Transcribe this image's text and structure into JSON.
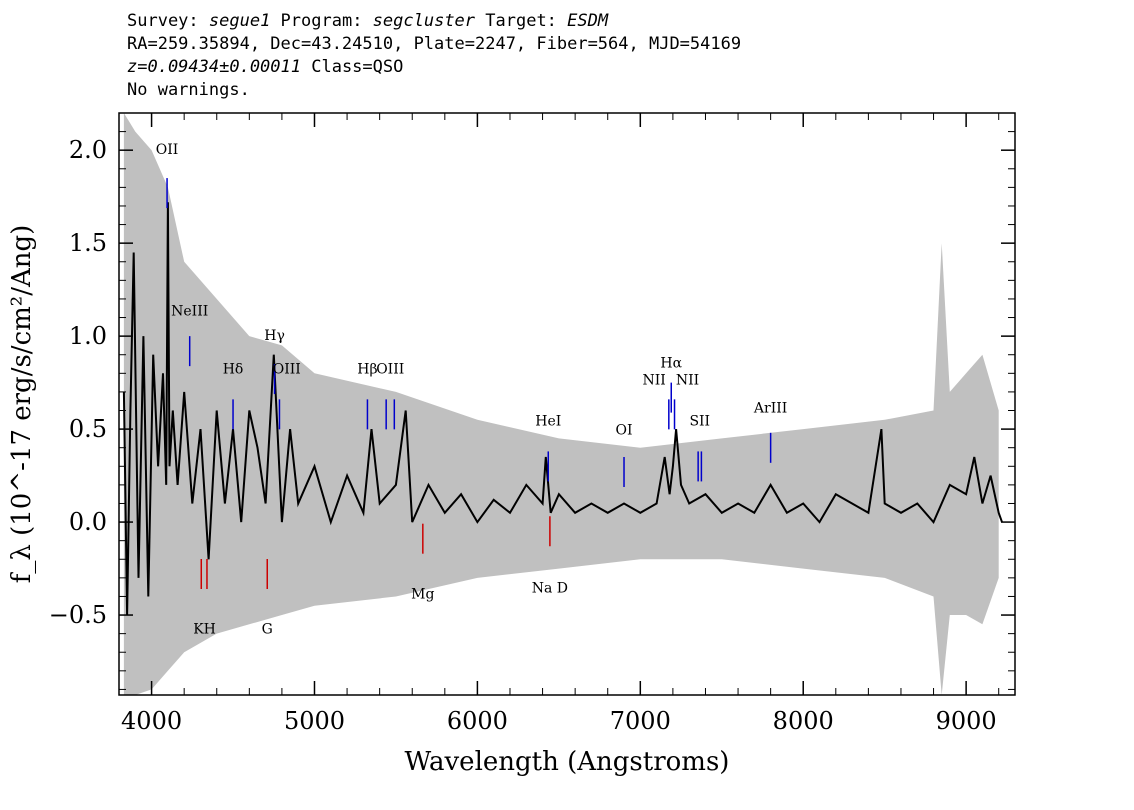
{
  "header": {
    "survey_label": "Survey: ",
    "survey": "segue1",
    "program_label": " Program: ",
    "program": "segcluster",
    "target_label": " Target: ",
    "target": "ESDM",
    "line2": "RA=259.35894, Dec=43.24510, Plate=2247, Fiber=564, MJD=54169",
    "redshift": "z=0.09434±0.00011",
    "class": " Class=QSO",
    "warnings": "No warnings."
  },
  "chart_data": {
    "type": "line",
    "xlabel": "Wavelength (Angstroms)",
    "ylabel": "f_λ (10^-17 erg/s/cm²/Ang)",
    "xlim": [
      3800,
      9300
    ],
    "ylim": [
      -0.93,
      2.2
    ],
    "xticks": [
      4000,
      5000,
      6000,
      7000,
      8000,
      9000
    ],
    "yticks": [
      -0.5,
      0.0,
      0.5,
      1.0,
      1.5,
      2.0
    ],
    "ytick_labels": [
      "−0.5",
      "0.0",
      "0.5",
      "1.0",
      "1.5",
      "2.0"
    ],
    "grid": false,
    "colors": {
      "flux": "#000000",
      "error": "#c0c0c0",
      "emission": "#0000cc",
      "absorption": "#cc0000"
    },
    "series": [
      {
        "role": "flux",
        "x": [
          3830,
          3850,
          3870,
          3890,
          3920,
          3950,
          3980,
          4010,
          4040,
          4070,
          4090,
          4100,
          4110,
          4130,
          4160,
          4200,
          4250,
          4300,
          4350,
          4400,
          4450,
          4500,
          4550,
          4600,
          4650,
          4700,
          4750,
          4800,
          4850,
          4900,
          5000,
          5100,
          5200,
          5300,
          5350,
          5400,
          5500,
          5560,
          5600,
          5700,
          5800,
          5900,
          6000,
          6100,
          6200,
          6300,
          6400,
          6420,
          6450,
          6500,
          6600,
          6700,
          6800,
          6900,
          7000,
          7100,
          7150,
          7180,
          7200,
          7220,
          7250,
          7300,
          7400,
          7500,
          7600,
          7700,
          7800,
          7900,
          8000,
          8100,
          8200,
          8300,
          8400,
          8480,
          8500,
          8600,
          8700,
          8800,
          8900,
          9000,
          9050,
          9100,
          9150,
          9200,
          9220
        ],
        "y": [
          0.7,
          -0.5,
          0.6,
          1.45,
          -0.3,
          1.0,
          -0.4,
          0.9,
          0.3,
          0.8,
          0.2,
          1.72,
          0.3,
          0.6,
          0.2,
          0.7,
          0.1,
          0.5,
          -0.2,
          0.6,
          0.1,
          0.5,
          0.0,
          0.6,
          0.4,
          0.1,
          0.9,
          0.0,
          0.5,
          0.1,
          0.3,
          0.0,
          0.25,
          0.05,
          0.5,
          0.1,
          0.2,
          0.6,
          0.0,
          0.2,
          0.05,
          0.15,
          0.0,
          0.12,
          0.05,
          0.2,
          0.1,
          0.35,
          0.05,
          0.15,
          0.05,
          0.1,
          0.05,
          0.1,
          0.05,
          0.1,
          0.35,
          0.15,
          0.3,
          0.5,
          0.2,
          0.1,
          0.15,
          0.05,
          0.1,
          0.05,
          0.2,
          0.05,
          0.1,
          0.0,
          0.15,
          0.1,
          0.05,
          0.5,
          0.1,
          0.05,
          0.1,
          0.0,
          0.2,
          0.15,
          0.35,
          0.1,
          0.25,
          0.05,
          0.0
        ]
      },
      {
        "role": "error",
        "x": [
          3830,
          3900,
          4000,
          4100,
          4200,
          4400,
          4600,
          4800,
          5000,
          5500,
          6000,
          6500,
          7000,
          7500,
          8000,
          8500,
          8800,
          8850,
          8900,
          9000,
          9100,
          9200
        ],
        "upper": [
          2.2,
          2.1,
          2.0,
          1.8,
          1.4,
          1.2,
          1.0,
          0.95,
          0.8,
          0.7,
          0.55,
          0.45,
          0.4,
          0.45,
          0.5,
          0.55,
          0.6,
          1.5,
          0.7,
          0.8,
          0.9,
          0.6
        ],
        "lower": [
          -0.93,
          -0.93,
          -0.9,
          -0.8,
          -0.7,
          -0.6,
          -0.55,
          -0.5,
          -0.45,
          -0.4,
          -0.3,
          -0.25,
          -0.2,
          -0.2,
          -0.25,
          -0.3,
          -0.4,
          -0.93,
          -0.5,
          -0.5,
          -0.55,
          -0.3
        ]
      }
    ],
    "emission_lines": [
      {
        "label": "OII",
        "x": 4095,
        "y": 1.85
      },
      {
        "label": "NeIII",
        "x": 4234,
        "y": 1.0
      },
      {
        "label": "Hδ",
        "x": 4500,
        "y": 0.66
      },
      {
        "label": "Hγ",
        "x": 4755,
        "y": 0.85
      },
      {
        "label": "OIII",
        "x": 4785,
        "y": 0.66
      },
      {
        "label": "Hβ",
        "x": 5325,
        "y": 0.66
      },
      {
        "label": "OIII",
        "x": 5440,
        "y": 0.66
      },
      {
        "label": "OIII",
        "x": 5490,
        "y": 0.66
      },
      {
        "label": "HeI",
        "x": 6435,
        "y": 0.38
      },
      {
        "label": "OI",
        "x": 6900,
        "y": 0.35
      },
      {
        "label": "NII",
        "x": 7175,
        "y": 0.66
      },
      {
        "label": "Hα",
        "x": 7190,
        "y": 0.75
      },
      {
        "label": "NII",
        "x": 7210,
        "y": 0.66
      },
      {
        "label": "SII",
        "x": 7355,
        "y": 0.38
      },
      {
        "label": "SII",
        "x": 7375,
        "y": 0.38
      },
      {
        "label": "ArIII",
        "x": 7800,
        "y": 0.48
      }
    ],
    "emission_label_groups": [
      {
        "label": "OII",
        "x": 4095,
        "y": 1.98
      },
      {
        "label": "NeIII",
        "x": 4234,
        "y": 1.11
      },
      {
        "label": "Hδ",
        "x": 4500,
        "y": 0.8
      },
      {
        "label": "Hγ",
        "x": 4755,
        "y": 0.98
      },
      {
        "label": "OIII",
        "x": 4830,
        "y": 0.8
      },
      {
        "label": "Hβ",
        "x": 5325,
        "y": 0.8
      },
      {
        "label": "OIII",
        "x": 5465,
        "y": 0.8
      },
      {
        "label": "HeI",
        "x": 6435,
        "y": 0.52
      },
      {
        "label": "NII",
        "x": 7085,
        "y": 0.74
      },
      {
        "label": "Hα",
        "x": 7190,
        "y": 0.83
      },
      {
        "label": "NII",
        "x": 7290,
        "y": 0.74
      },
      {
        "label": "OI",
        "x": 6900,
        "y": 0.47
      },
      {
        "label": "SII",
        "x": 7365,
        "y": 0.52
      },
      {
        "label": "ArIII",
        "x": 7800,
        "y": 0.59
      }
    ],
    "absorption_lines": [
      {
        "label": "K",
        "x": 4305,
        "y": -0.36
      },
      {
        "label": "H",
        "x": 4340,
        "y": -0.36
      },
      {
        "label": "G",
        "x": 4710,
        "y": -0.36
      },
      {
        "label": "Mg",
        "x": 5665,
        "y": -0.17
      },
      {
        "label": "Na D",
        "x": 6445,
        "y": -0.13
      }
    ],
    "absorption_label_groups": [
      {
        "label": "KH",
        "x": 4325,
        "y": -0.6
      },
      {
        "label": "G",
        "x": 4710,
        "y": -0.6
      },
      {
        "label": "Mg",
        "x": 5665,
        "y": -0.41
      },
      {
        "label": "Na D",
        "x": 6445,
        "y": -0.38
      }
    ]
  }
}
